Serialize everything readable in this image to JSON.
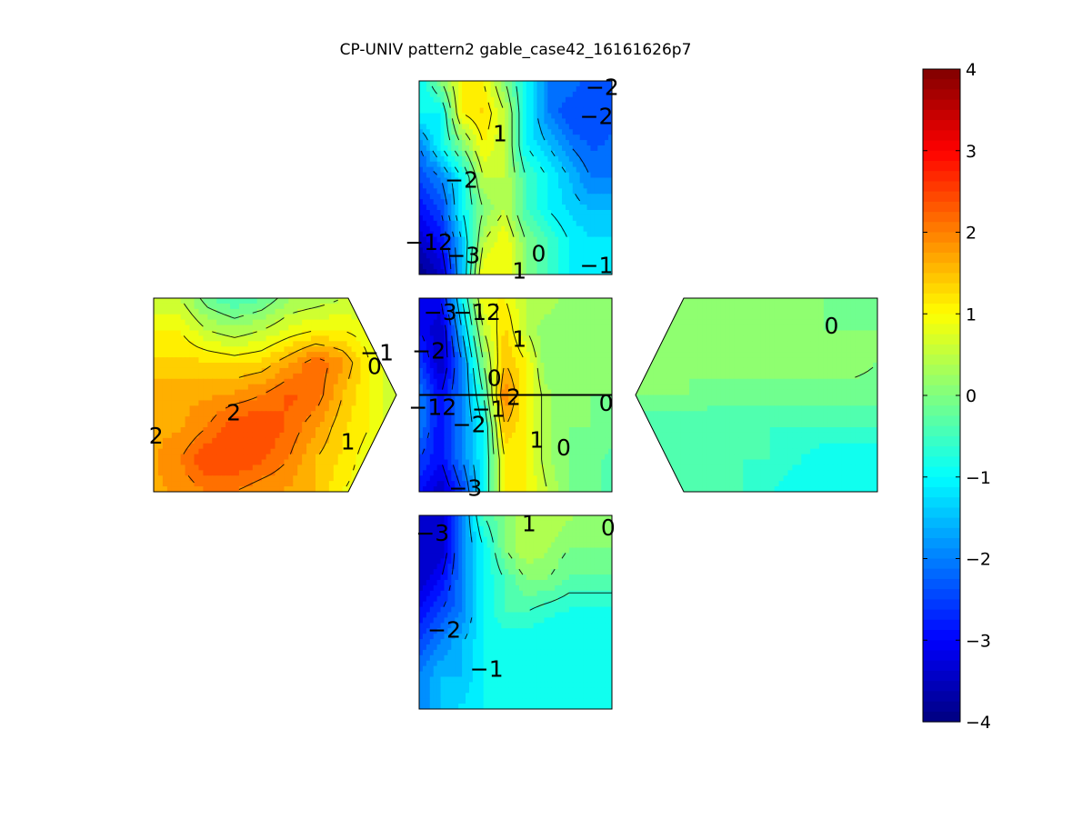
{
  "chart_data": {
    "type": "contour",
    "title": "CP-UNIV pattern2 gable_case42_16161626p7",
    "colormap": "jet",
    "clim": [
      -4,
      4
    ],
    "colorbar": {
      "ticks": [
        4,
        3,
        2,
        1,
        0,
        -1,
        -2,
        -3,
        -4
      ],
      "tick_labels": [
        "4",
        "3",
        "2",
        "1",
        "0",
        "−1",
        "−2",
        "−3",
        "−4"
      ]
    },
    "panels": [
      {
        "name": "top-face",
        "shape": "square",
        "grid": [
          [
            -1,
            0,
            1,
            1,
            0,
            -1,
            -2,
            -2,
            -2.5,
            -2.5
          ],
          [
            -1,
            -1,
            1,
            1.3,
            0.5,
            -1,
            -2,
            -2.5,
            -2.5,
            -2.3
          ],
          [
            -2,
            -1,
            0,
            1,
            0.5,
            -1,
            -1.5,
            -2,
            -2.3,
            -2.2
          ],
          [
            -2.5,
            -2,
            -1,
            0.5,
            0.5,
            -0.5,
            -1,
            -1.5,
            -2,
            -2
          ],
          [
            -3,
            -2.5,
            -1,
            0,
            0.5,
            -0.5,
            -1,
            -1.3,
            -1.5,
            -1.5
          ],
          [
            -3.5,
            -3,
            -1.5,
            0.5,
            1,
            0,
            -0.5,
            -1,
            -1.2,
            -1.2
          ],
          [
            -4,
            -3.5,
            -1.5,
            1,
            1,
            0,
            -0.5,
            -1,
            -1,
            -1
          ]
        ],
        "labels": [
          {
            "text": "−2",
            "x": 0.95,
            "y": 0.97
          },
          {
            "text": "−2",
            "x": 0.92,
            "y": 0.82
          },
          {
            "text": "1",
            "x": 0.42,
            "y": 0.73
          },
          {
            "text": "−2",
            "x": 0.22,
            "y": 0.49
          },
          {
            "text": "−12",
            "x": 0.05,
            "y": 0.17
          },
          {
            "text": "−3",
            "x": 0.23,
            "y": 0.1
          },
          {
            "text": "0",
            "x": 0.62,
            "y": 0.11
          },
          {
            "text": "1",
            "x": 0.52,
            "y": 0.02
          },
          {
            "text": "−1",
            "x": 0.92,
            "y": 0.05
          }
        ]
      },
      {
        "name": "center-face",
        "shape": "square",
        "grid": [
          [
            -3,
            -3,
            -1,
            1,
            1,
            0.5,
            0.5,
            0,
            0,
            0
          ],
          [
            -3,
            -3.5,
            -1.5,
            0.5,
            1.3,
            0.5,
            0,
            0,
            0,
            0
          ],
          [
            -2.5,
            -3.5,
            -2,
            0,
            1.5,
            1,
            0,
            0,
            0,
            0
          ],
          [
            -2,
            -3,
            -2,
            -0.5,
            2,
            1,
            0.3,
            0,
            0,
            0
          ],
          [
            -2,
            -3,
            -2,
            -1,
            1.5,
            1,
            0.3,
            0,
            0,
            -0.2
          ],
          [
            -2.5,
            -3,
            -2,
            -1,
            1,
            1,
            0.3,
            0,
            -0.2,
            -0.3
          ],
          [
            -3,
            -3.5,
            -2.5,
            -1,
            1,
            1,
            0.5,
            0,
            -0.2,
            -0.3
          ]
        ],
        "labels": [
          {
            "text": "−3",
            "x": 0.11,
            "y": 0.93
          },
          {
            "text": "−12",
            "x": 0.3,
            "y": 0.93
          },
          {
            "text": "−2",
            "x": 0.05,
            "y": 0.73
          },
          {
            "text": "1",
            "x": 0.52,
            "y": 0.79
          },
          {
            "text": "0",
            "x": 0.39,
            "y": 0.59
          },
          {
            "text": "−12",
            "x": 0.07,
            "y": 0.44
          },
          {
            "text": "−1",
            "x": 0.36,
            "y": 0.43
          },
          {
            "text": "2",
            "x": 0.49,
            "y": 0.49
          },
          {
            "text": "0",
            "x": 0.97,
            "y": 0.46
          },
          {
            "text": "−2",
            "x": 0.26,
            "y": 0.35
          },
          {
            "text": "1",
            "x": 0.61,
            "y": 0.27
          },
          {
            "text": "0",
            "x": 0.75,
            "y": 0.23
          },
          {
            "text": "−3",
            "x": 0.24,
            "y": 0.02
          }
        ]
      },
      {
        "name": "bottom-face",
        "shape": "square",
        "grid": [
          [
            -3.5,
            -3.5,
            -2,
            -0.5,
            0,
            0.5,
            0.5,
            0.3,
            0,
            0
          ],
          [
            -3.5,
            -3.5,
            -2,
            -1,
            0,
            0.5,
            0.3,
            0,
            0,
            0
          ],
          [
            -3.5,
            -3,
            -2,
            -1,
            -0.5,
            0,
            0,
            -0.3,
            -0.3,
            -0.3
          ],
          [
            -3,
            -2.5,
            -2,
            -1,
            -0.5,
            -0.5,
            -0.7,
            -0.8,
            -0.8,
            -0.8
          ],
          [
            -2.5,
            -2,
            -1.5,
            -1,
            -1,
            -1,
            -1,
            -1,
            -1,
            -1
          ],
          [
            -2,
            -1.5,
            -1.5,
            -1,
            -1,
            -1,
            -1,
            -1,
            -1,
            -1
          ],
          [
            -2,
            -1.5,
            -1.2,
            -1,
            -1,
            -1,
            -1,
            -1,
            -1,
            -1
          ]
        ],
        "labels": [
          {
            "text": "−3",
            "x": 0.07,
            "y": 0.91
          },
          {
            "text": "1",
            "x": 0.57,
            "y": 0.96
          },
          {
            "text": "0",
            "x": 0.98,
            "y": 0.94
          },
          {
            "text": "−2",
            "x": 0.13,
            "y": 0.41
          },
          {
            "text": "−1",
            "x": 0.35,
            "y": 0.21
          }
        ]
      },
      {
        "name": "left-gable",
        "shape": "gable-right",
        "grid": [
          [
            0.5,
            0.5,
            -0.2,
            -0.5,
            -0.3,
            0.2,
            0.3,
            0.5,
            0.5,
            0.5
          ],
          [
            1,
            1,
            0.5,
            0.3,
            0.5,
            0.8,
            1,
            1,
            0.8,
            0.5
          ],
          [
            1.3,
            1.3,
            1.3,
            1.2,
            1.3,
            1.7,
            2.2,
            1.8,
            1,
            0.5
          ],
          [
            1.7,
            1.7,
            1.7,
            1.8,
            2,
            2.3,
            2.2,
            1.5,
            1,
            0.5
          ],
          [
            1.7,
            1.7,
            2,
            2.5,
            2.5,
            2.2,
            1.8,
            1.3,
            1,
            0.5
          ],
          [
            1.7,
            2,
            2.5,
            2.5,
            2.3,
            2,
            1.5,
            1.2,
            0.8,
            0.5
          ],
          [
            1.7,
            1.8,
            2,
            2,
            1.8,
            1.7,
            1.5,
            1,
            0.8,
            0.5
          ]
        ],
        "labels": [
          {
            "text": "−1",
            "x": 0.92,
            "y": 0.72
          },
          {
            "text": "0",
            "x": 0.91,
            "y": 0.65
          },
          {
            "text": "2",
            "x": 0.33,
            "y": 0.41
          },
          {
            "text": "2",
            "x": 0.01,
            "y": 0.29
          },
          {
            "text": "1",
            "x": 0.8,
            "y": 0.26
          }
        ]
      },
      {
        "name": "right-gable",
        "shape": "gable-left",
        "grid": [
          [
            0,
            0,
            0,
            0,
            0,
            0,
            0,
            0,
            -0.2,
            -0.2
          ],
          [
            0,
            0,
            0,
            0,
            0,
            0,
            0,
            0,
            0,
            0
          ],
          [
            0,
            0,
            0,
            0.1,
            0.1,
            0.1,
            0.1,
            0.1,
            0.1,
            0
          ],
          [
            0,
            0,
            0,
            -0.1,
            -0.1,
            -0.1,
            -0.1,
            -0.1,
            -0.1,
            -0.1
          ],
          [
            -0.5,
            -0.5,
            -0.5,
            -0.5,
            -0.5,
            -0.5,
            -0.5,
            -0.5,
            -0.5,
            -0.5
          ],
          [
            -0.5,
            -0.5,
            -0.5,
            -0.5,
            -0.5,
            -0.5,
            -0.7,
            -1,
            -1,
            -1
          ],
          [
            -0.5,
            -0.5,
            -0.5,
            -0.5,
            -0.5,
            -0.7,
            -1,
            -1,
            -1,
            -1
          ]
        ],
        "labels": [
          {
            "text": "0",
            "x": 0.81,
            "y": 0.86
          }
        ]
      }
    ]
  }
}
